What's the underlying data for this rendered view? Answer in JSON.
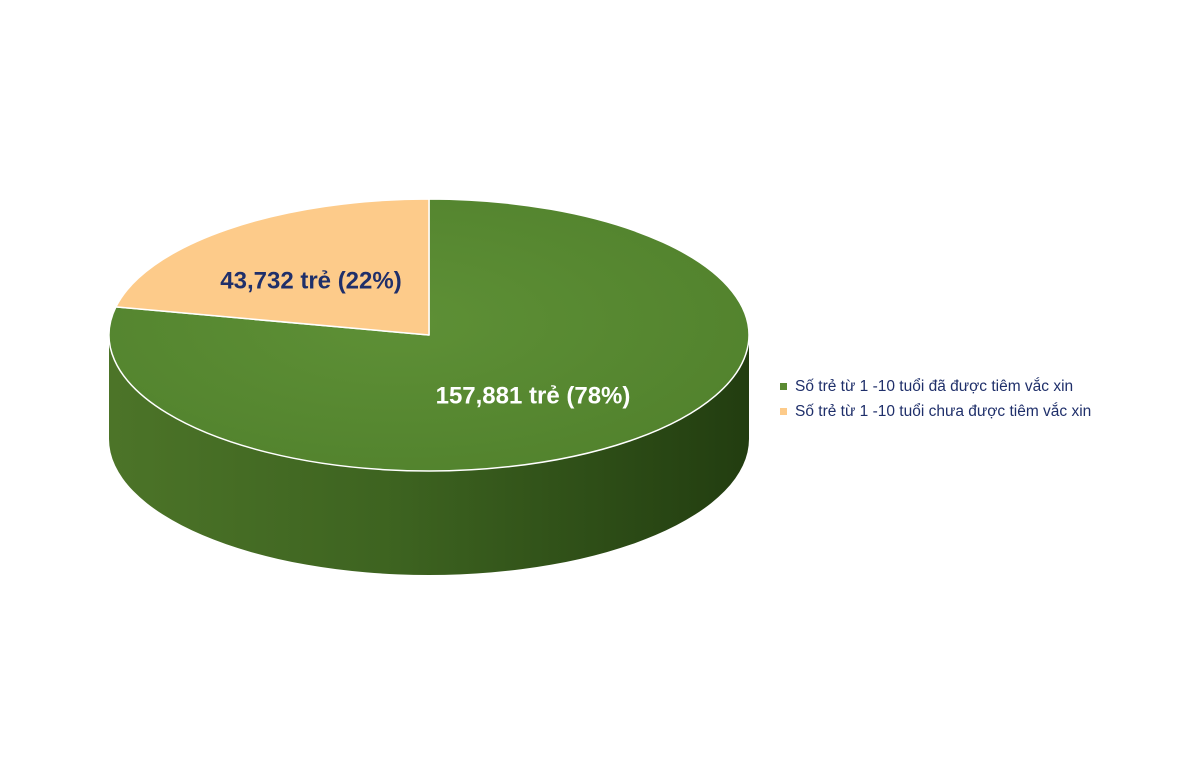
{
  "chart_data": {
    "type": "pie",
    "style": "3d",
    "categories": [
      "Số trẻ từ 1 -10 tuổi đã được tiêm vắc xin",
      "Số trẻ từ 1 -10 tuổi chưa được tiêm vắc xin"
    ],
    "values": [
      157881,
      43732
    ],
    "percentages": [
      78,
      22
    ],
    "data_labels": [
      "157,881 trẻ (78%)",
      "43,732 trẻ (22%)"
    ],
    "colors": [
      "#5a8a32",
      "#fdcb8a"
    ],
    "legend_position": "right",
    "legend": [
      "Số trẻ từ 1 -10 tuổi đã được tiêm vắc xin",
      "Số trẻ từ 1 -10 tuổi chưa được tiêm vắc xin"
    ],
    "label_colors": [
      "#ffffff",
      "#1f2f6a"
    ]
  }
}
